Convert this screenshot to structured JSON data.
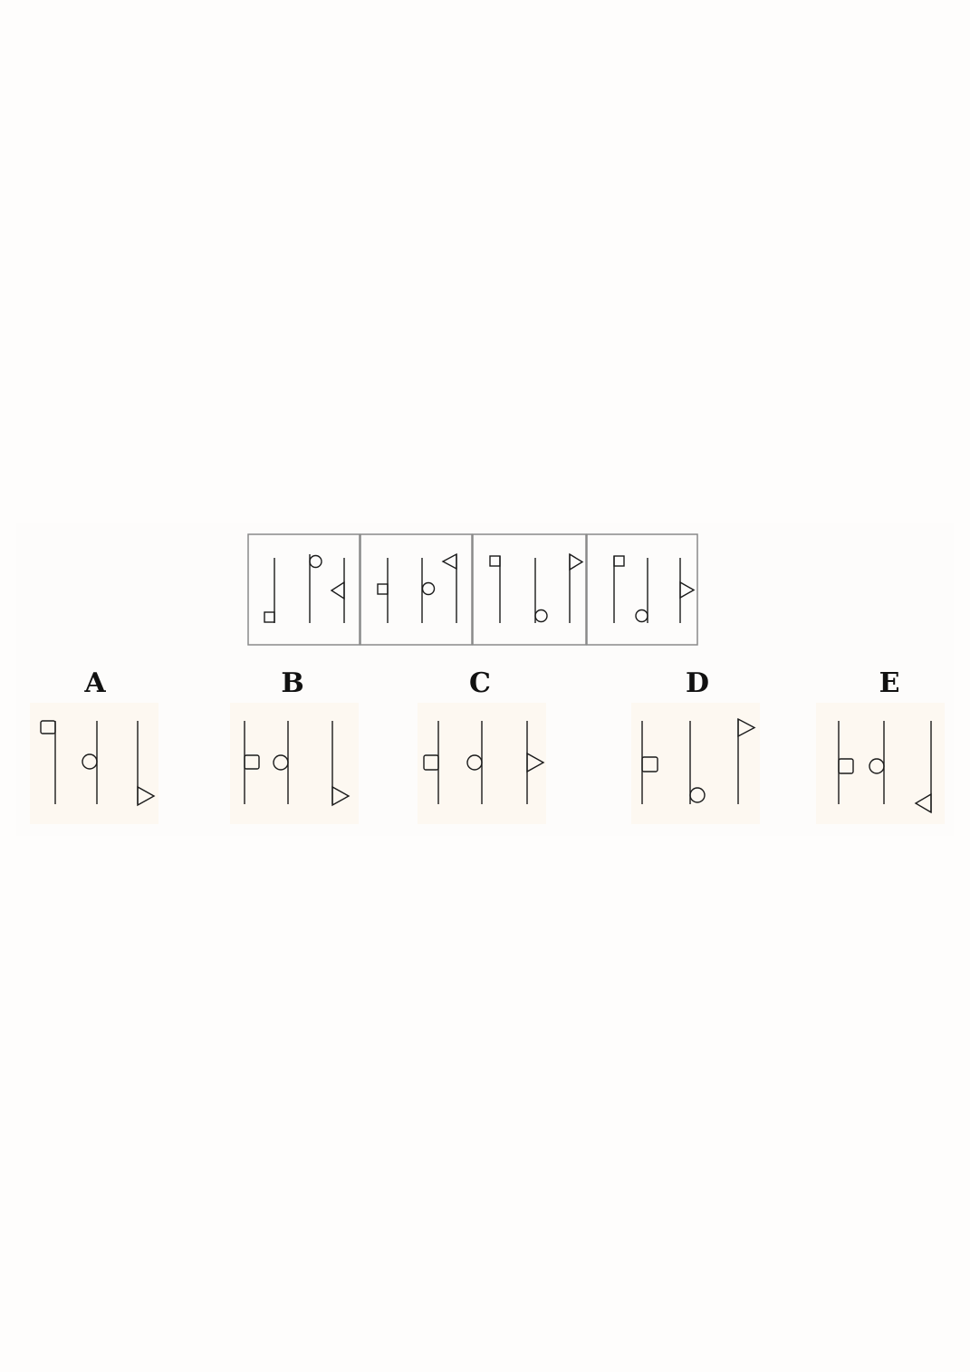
{
  "options": {
    "A": "A",
    "B": "B",
    "C": "C",
    "D": "D",
    "E": "E"
  },
  "colors": {
    "stroke": "#1a1a1a",
    "frame_border": "#8a8a8a",
    "option_background": "#fdf8f1"
  }
}
